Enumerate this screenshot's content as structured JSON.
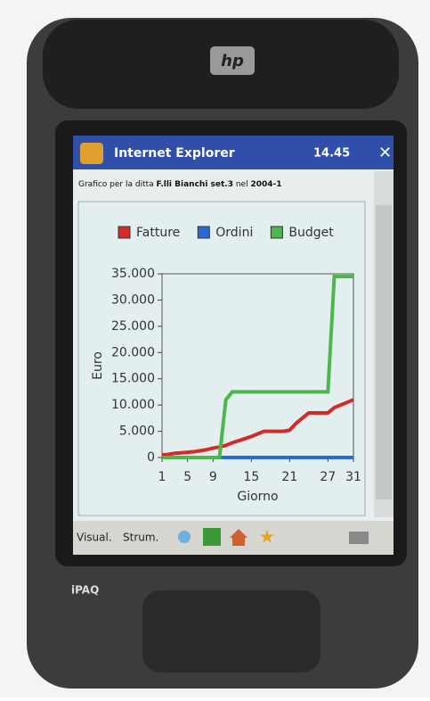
{
  "device": {
    "logo": "hp",
    "brand": "iPAQ"
  },
  "browser": {
    "title": "Internet Explorer",
    "time": "14.45"
  },
  "page": {
    "caption_prefix": "Grafico per la ditta ",
    "company": "F.lli Bianchi set.3",
    "caption_mid": " nel ",
    "period": "2004-1"
  },
  "toolbar": {
    "items": [
      "Visual.",
      "Strum."
    ]
  },
  "chart_data": {
    "type": "line",
    "xlabel": "Giorno",
    "ylabel": "Euro",
    "x": [
      1,
      2,
      3,
      4,
      5,
      6,
      7,
      8,
      9,
      10,
      11,
      12,
      13,
      14,
      15,
      16,
      17,
      18,
      19,
      20,
      21,
      22,
      23,
      24,
      25,
      26,
      27,
      28,
      29,
      30,
      31
    ],
    "xlim": [
      1,
      31
    ],
    "xticks": [
      1,
      5,
      9,
      15,
      21,
      27,
      31
    ],
    "ylim": [
      0,
      35000
    ],
    "yticks": [
      0,
      {
        "value": 5000,
        "label": "5.000"
      },
      {
        "value": 10000,
        "label": "10.000"
      },
      {
        "value": 15000,
        "label": "15.000"
      },
      {
        "value": 20000,
        "label": "20.000"
      },
      {
        "value": 25000,
        "label": "25.000"
      },
      {
        "value": 30000,
        "label": "30.000"
      },
      {
        "value": 35000,
        "label": "35.000"
      }
    ],
    "series": [
      {
        "name": "Fatture",
        "color": "#d42a2a",
        "values": [
          500,
          600,
          800,
          900,
          1000,
          1100,
          1300,
          1500,
          1800,
          2000,
          2300,
          2800,
          3200,
          3600,
          4000,
          4500,
          5000,
          5000,
          5000,
          5000,
          5200,
          6500,
          7500,
          8500,
          8500,
          8500,
          8500,
          9500,
          10000,
          10500,
          11000
        ]
      },
      {
        "name": "Ordini",
        "color": "#2a6ad4",
        "values": [
          0,
          0,
          0,
          0,
          0,
          0,
          0,
          0,
          0,
          0,
          0,
          0,
          0,
          0,
          0,
          0,
          0,
          0,
          0,
          0,
          0,
          0,
          0,
          0,
          0,
          0,
          0,
          0,
          0,
          0,
          0
        ]
      },
      {
        "name": "Budget",
        "color": "#4cb84c",
        "values": [
          0,
          0,
          0,
          0,
          0,
          0,
          0,
          0,
          0,
          0,
          11000,
          12500,
          12500,
          12500,
          12500,
          12500,
          12500,
          12500,
          12500,
          12500,
          12500,
          12500,
          12500,
          12500,
          12500,
          12500,
          12500,
          34500,
          34500,
          34500,
          34500
        ]
      }
    ]
  }
}
